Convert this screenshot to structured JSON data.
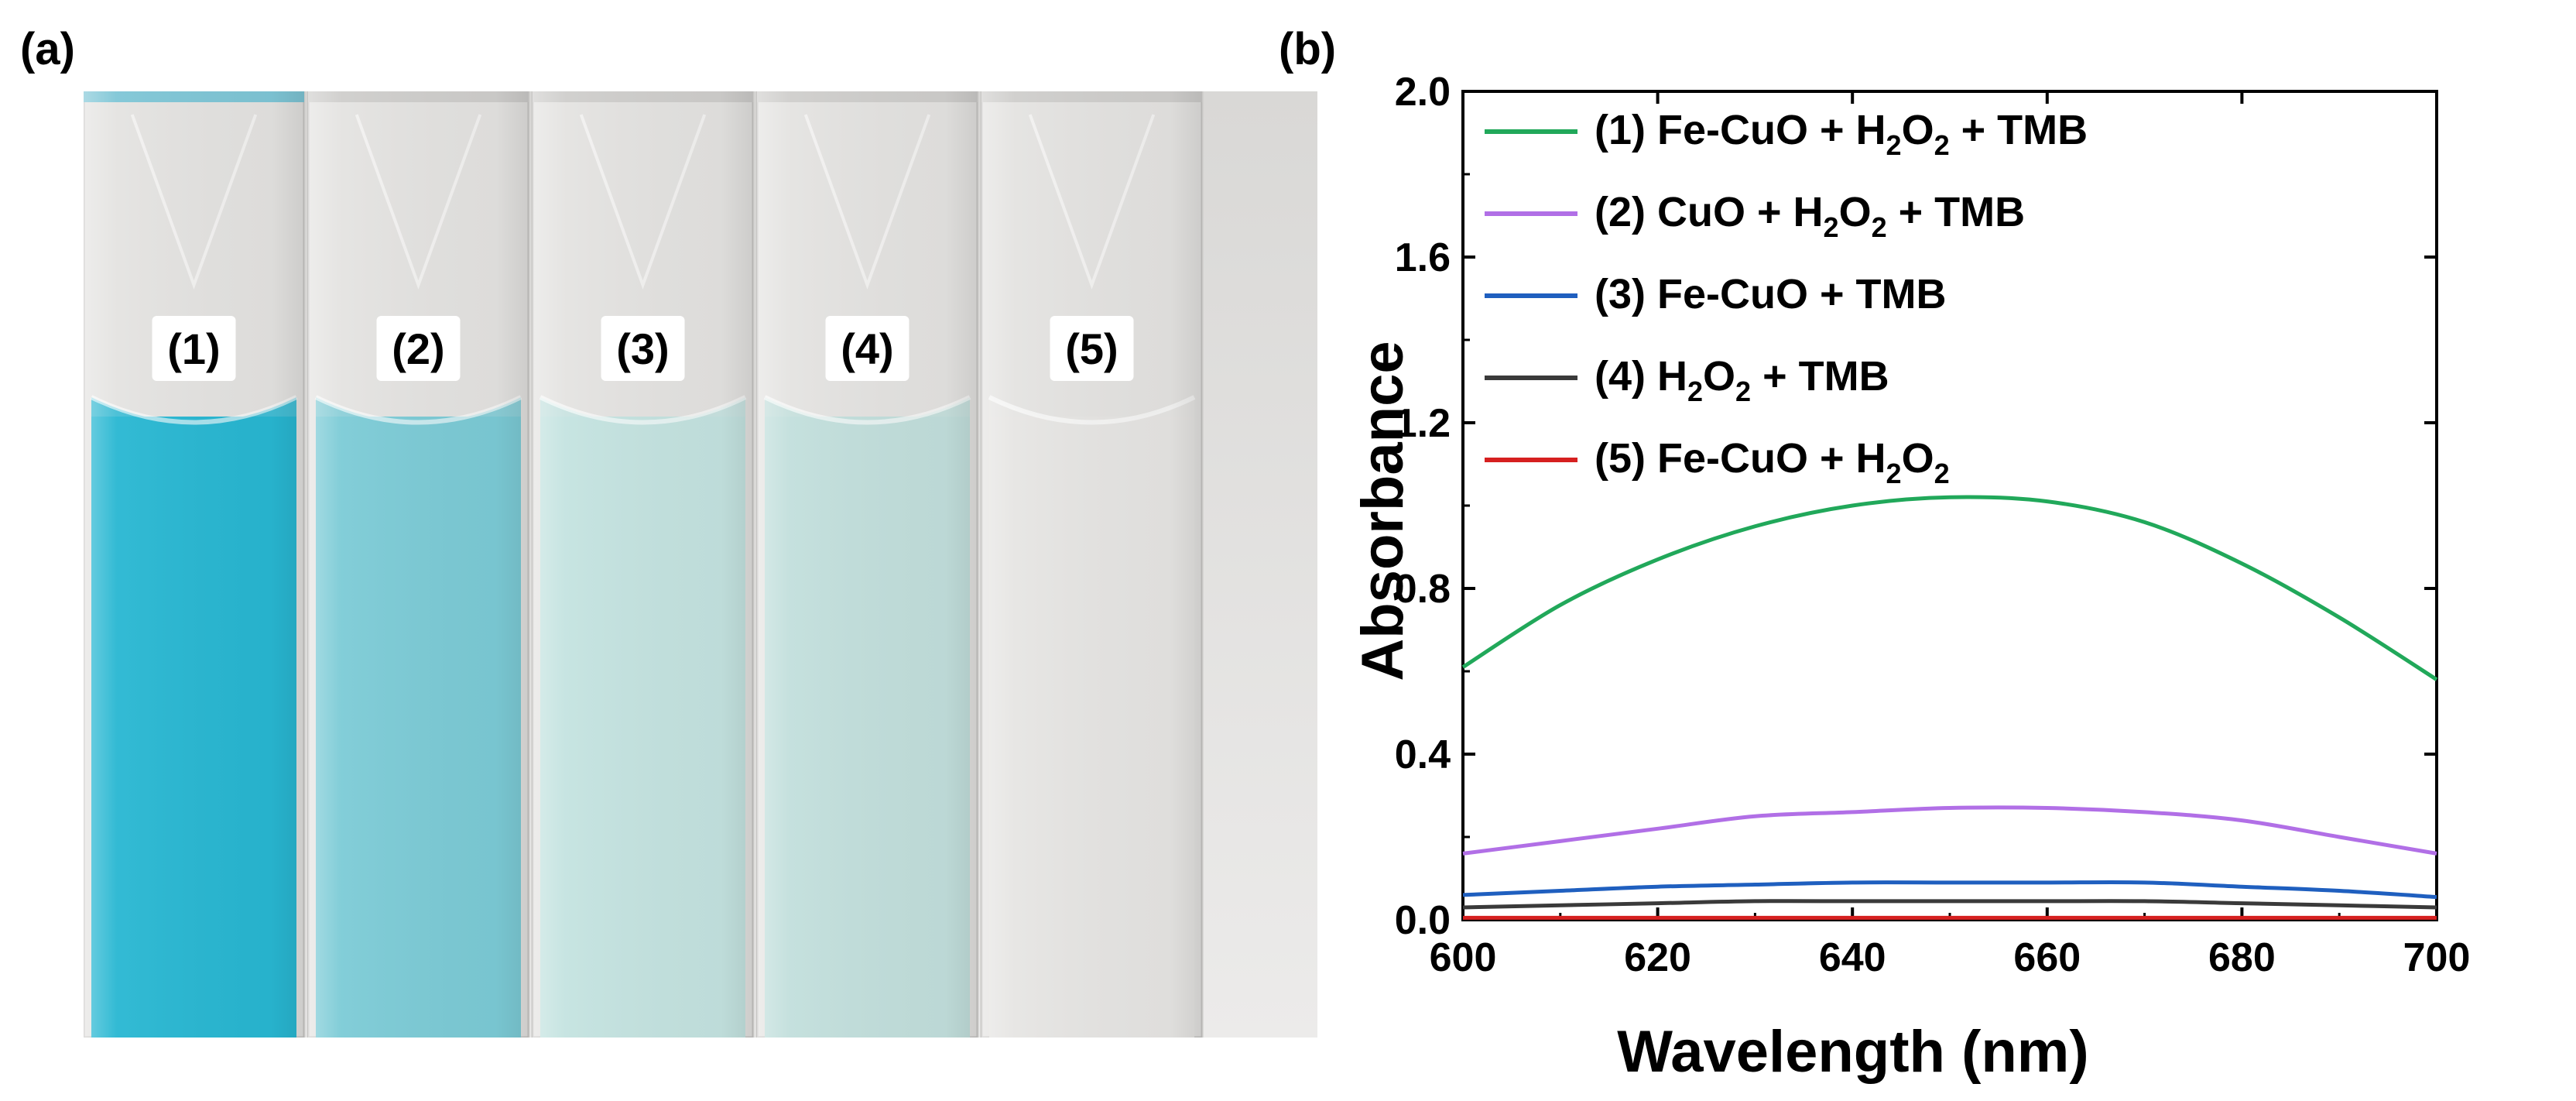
{
  "panels": {
    "a_label": "(a)",
    "b_label": "(b)"
  },
  "photo": {
    "cuvettes": [
      {
        "label": "(1)",
        "liquid_color": "#28b7d2"
      },
      {
        "label": "(2)",
        "liquid_color": "#7ccbd6"
      },
      {
        "label": "(3)",
        "liquid_color": "#c4e3e0"
      },
      {
        "label": "(4)",
        "liquid_color": "#c2dfdc"
      },
      {
        "label": "(5)",
        "liquid_color": "#e6e5e3"
      }
    ]
  },
  "chart_data": {
    "type": "line",
    "xlabel": "Wavelength (nm)",
    "ylabel": "Absorbance",
    "xlim": [
      600,
      700
    ],
    "ylim": [
      0,
      2.0
    ],
    "xticks": [
      600,
      620,
      640,
      660,
      680,
      700
    ],
    "yticks": [
      0.0,
      0.4,
      0.8,
      1.2,
      1.6,
      2.0
    ],
    "x": [
      600,
      610,
      620,
      630,
      640,
      650,
      660,
      670,
      680,
      690,
      700
    ],
    "legend_location": "top-left",
    "series": [
      {
        "name": "(1) Fe-CuO + H2O2 + TMB",
        "legend_parts": [
          "(1) Fe-CuO + H",
          "2",
          "O",
          "2",
          " + TMB"
        ],
        "color": "#21a85a",
        "values": [
          0.61,
          0.76,
          0.87,
          0.95,
          1.0,
          1.02,
          1.01,
          0.96,
          0.86,
          0.73,
          0.58
        ]
      },
      {
        "name": "(2) CuO + H2O2 + TMB",
        "legend_parts": [
          "(2) CuO + H",
          "2",
          "O",
          "2",
          " + TMB"
        ],
        "color": "#b16fe6",
        "values": [
          0.16,
          0.19,
          0.22,
          0.25,
          0.26,
          0.27,
          0.27,
          0.26,
          0.24,
          0.2,
          0.16
        ]
      },
      {
        "name": "(3) Fe-CuO + TMB",
        "legend_parts": [
          "(3) Fe-CuO + TMB"
        ],
        "color": "#1f5fbf",
        "values": [
          0.06,
          0.07,
          0.08,
          0.085,
          0.09,
          0.09,
          0.09,
          0.09,
          0.08,
          0.07,
          0.055
        ]
      },
      {
        "name": "(4) H2O2 + TMB",
        "legend_parts": [
          "(4) H",
          "2",
          "O",
          "2",
          " + TMB"
        ],
        "color": "#3a3a3a",
        "values": [
          0.03,
          0.035,
          0.04,
          0.045,
          0.045,
          0.045,
          0.045,
          0.045,
          0.04,
          0.035,
          0.03
        ]
      },
      {
        "name": "(5) Fe-CuO + H2O2",
        "legend_parts": [
          "(5) Fe-CuO + H",
          "2",
          "O",
          "2"
        ],
        "color": "#d62020",
        "values": [
          0.005,
          0.005,
          0.005,
          0.005,
          0.005,
          0.005,
          0.005,
          0.005,
          0.005,
          0.005,
          0.005
        ]
      }
    ]
  }
}
